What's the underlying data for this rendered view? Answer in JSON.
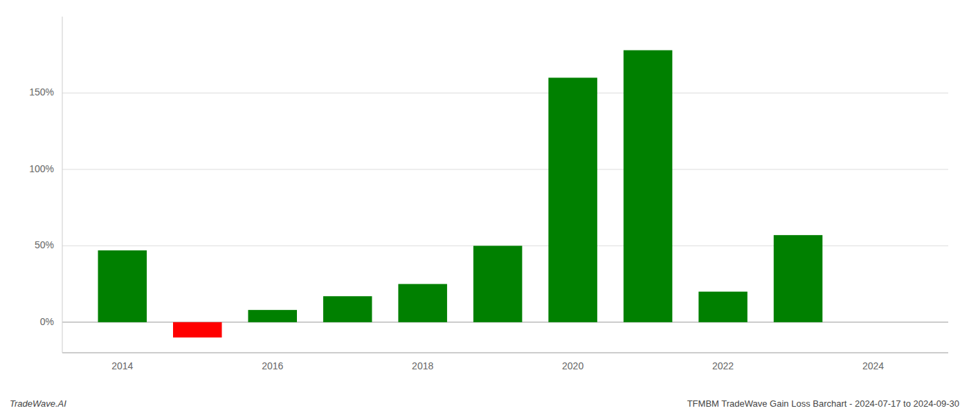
{
  "chart_data": {
    "type": "bar",
    "title": "TFMBM TradeWave Gain Loss Barchart - 2024-07-17 to 2024-09-30",
    "annotations": [
      "TradeWave.AI"
    ],
    "x": [
      2014,
      2015,
      2016,
      2017,
      2018,
      2019,
      2020,
      2021,
      2022,
      2023
    ],
    "values": [
      0.47,
      -0.1,
      0.08,
      0.17,
      0.25,
      0.5,
      1.6,
      1.78,
      0.2,
      0.57
    ],
    "colors": [
      "#008000",
      "#ff0000",
      "#008000",
      "#008000",
      "#008000",
      "#008000",
      "#008000",
      "#008000",
      "#008000",
      "#008000"
    ],
    "xlim": [
      2013.2,
      2025.0
    ],
    "xticks": [
      2014,
      2016,
      2018,
      2020,
      2022,
      2024
    ],
    "ylim": [
      -0.2,
      2.0
    ],
    "yticks": [
      {
        "value": 0.0,
        "label": "0%"
      },
      {
        "value": 0.5,
        "label": "50%"
      },
      {
        "value": 1.0,
        "label": "100%"
      },
      {
        "value": 1.5,
        "label": "150%"
      }
    ],
    "grid": true
  }
}
